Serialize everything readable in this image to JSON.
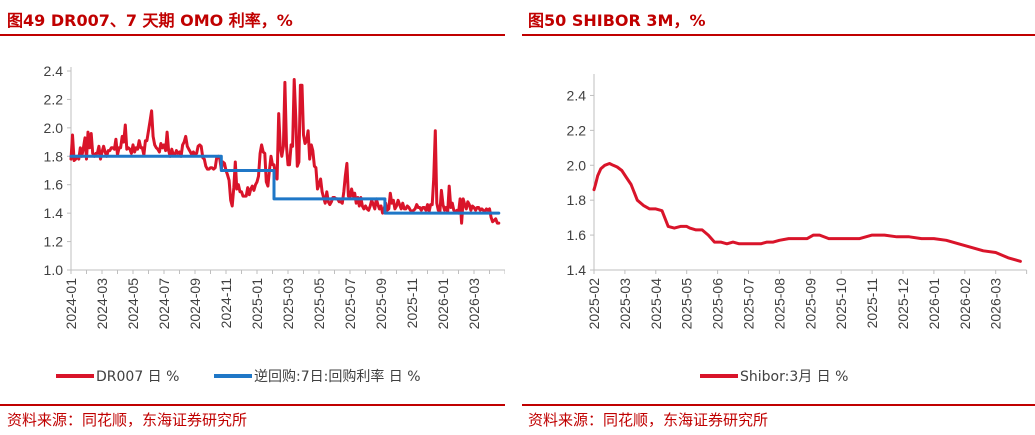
{
  "colors": {
    "accent": "#c00000",
    "series_red": "#d9142a",
    "series_blue": "#1f77c7",
    "axis": "#bfbfbf",
    "text": "#404040"
  },
  "left_panel": {
    "title": "图49  DR007、7 天期 OMO 利率，%",
    "source": "资料来源：同花顺，东海证券研究所"
  },
  "right_panel": {
    "title": "图50  SHIBOR 3M，%",
    "source": "资料来源：同花顺，东海证券研究所"
  },
  "chart_data": [
    {
      "type": "line",
      "title": "DR007、7 天期 OMO 利率，%",
      "xlabel": "",
      "ylabel": "",
      "ylim": [
        1.0,
        2.4
      ],
      "yticks": [
        "1.0",
        "1.2",
        "1.4",
        "1.6",
        "1.8",
        "2.0",
        "2.2",
        "2.4"
      ],
      "xlim": [
        "2024-01",
        "2026-04"
      ],
      "xticks": [
        "2024-01",
        "2024-03",
        "2024-05",
        "2024-07",
        "2024-09",
        "2024-11",
        "2025-01",
        "2025-03",
        "2025-05",
        "2025-07",
        "2025-09",
        "2025-11",
        "2026-01",
        "2026-03"
      ],
      "legend_position": "bottom",
      "series": [
        {
          "name": "DR007 日 %",
          "color": "#d9142a",
          "x": [
            0.0,
            0.1,
            0.2,
            0.3,
            0.4,
            0.5,
            0.6,
            0.7,
            0.8,
            0.9,
            1.0,
            1.1,
            1.2,
            1.3,
            1.4,
            1.5,
            1.6,
            1.7,
            1.8,
            1.9,
            2.0,
            2.1,
            2.2,
            2.3,
            2.4,
            2.5,
            2.6,
            2.7,
            2.8,
            2.9,
            3.0,
            3.1,
            3.2,
            3.3,
            3.4,
            3.5,
            3.6,
            3.7,
            3.8,
            3.9,
            4.0,
            4.1,
            4.2,
            4.3,
            4.4,
            4.5,
            4.6,
            4.7,
            4.8,
            4.9,
            5.0,
            5.1,
            5.2,
            5.3,
            5.4,
            5.5,
            5.6,
            5.7,
            5.8,
            5.9,
            6.0,
            6.1,
            6.2,
            6.3,
            6.4,
            6.5,
            6.6,
            6.7,
            6.8,
            6.9,
            7.0,
            7.1,
            7.2,
            7.3,
            7.4,
            7.5,
            7.6,
            7.7,
            7.8,
            7.9,
            8.0,
            8.1,
            8.2,
            8.3,
            8.4,
            8.5,
            8.6,
            8.7,
            8.8,
            8.9,
            9.0,
            9.1,
            9.2,
            9.3,
            9.4,
            9.5,
            9.6,
            9.7,
            9.8,
            9.9,
            10.0,
            10.1,
            10.2,
            10.3,
            10.4,
            10.5,
            10.6,
            10.7,
            10.8,
            10.9,
            11.0,
            11.1,
            11.2,
            11.3,
            11.4,
            11.5,
            11.6,
            11.7,
            11.8,
            11.9,
            12.0,
            12.1,
            12.2,
            12.3,
            12.4,
            12.5,
            12.6,
            12.7,
            12.8,
            12.9,
            13.0,
            13.1,
            13.2,
            13.3,
            13.4,
            13.5,
            13.6,
            13.7,
            13.8,
            13.9,
            14.0,
            14.1,
            14.2,
            14.3,
            14.4,
            14.5,
            14.6,
            14.7,
            14.8,
            14.9,
            15.0,
            15.1,
            15.2,
            15.3,
            15.4,
            15.5,
            15.6,
            15.7,
            15.8,
            15.9,
            16.0,
            16.1,
            16.2,
            16.3,
            16.4,
            16.5,
            16.6,
            16.7,
            16.8,
            16.9,
            17.0,
            17.1,
            17.2,
            17.3,
            17.4,
            17.5,
            17.6,
            17.7,
            17.8,
            17.9,
            18.0,
            18.1,
            18.2,
            18.3,
            18.4,
            18.5,
            18.6,
            18.7,
            18.8,
            18.9,
            19.0,
            19.1,
            19.2,
            19.3,
            19.4,
            19.5,
            19.6,
            19.7,
            19.8,
            19.9,
            20.0,
            20.1,
            20.2,
            20.3,
            20.4,
            20.5,
            20.6,
            20.7,
            20.8,
            20.9,
            21.0,
            21.1,
            21.2,
            21.3,
            21.4,
            21.5,
            21.6,
            21.7,
            21.8,
            21.9,
            22.0,
            22.1,
            22.2,
            22.3,
            22.4,
            22.5,
            22.6,
            22.7,
            22.8,
            22.9,
            23.0,
            23.1,
            23.2,
            23.3,
            23.4,
            23.5,
            23.6,
            23.7,
            23.8,
            23.9,
            24.0,
            24.1,
            24.2,
            24.3,
            24.4,
            24.5,
            24.6,
            24.7,
            24.8,
            24.9,
            25.0,
            25.1,
            25.2,
            25.3,
            25.4,
            25.5,
            25.6,
            25.7,
            25.8,
            25.9,
            26.0,
            26.1,
            26.2,
            26.3,
            26.4,
            26.5,
            26.6,
            26.7,
            26.8,
            26.9,
            27.0,
            27.1,
            27.2,
            27.3,
            27.4,
            27.5,
            27.6
          ],
          "values": [
            1.78,
            1.95,
            1.77,
            1.78,
            1.8,
            1.78,
            1.86,
            1.8,
            1.86,
            1.93,
            1.78,
            1.97,
            1.86,
            1.96,
            1.82,
            1.8,
            1.82,
            1.82,
            1.87,
            1.78,
            1.83,
            1.87,
            1.83,
            1.8,
            1.84,
            1.84,
            1.86,
            1.86,
            1.85,
            1.92,
            1.81,
            1.86,
            1.86,
            1.94,
            1.9,
            2.02,
            1.85,
            1.86,
            1.85,
            1.82,
            1.88,
            1.83,
            1.86,
            1.85,
            1.91,
            1.86,
            1.86,
            1.81,
            1.91,
            1.91,
            1.98,
            2.05,
            2.12,
            1.94,
            1.88,
            1.86,
            1.85,
            1.83,
            1.89,
            1.86,
            1.88,
            1.84,
            1.97,
            1.84,
            1.8,
            1.85,
            1.81,
            1.81,
            1.84,
            1.82,
            1.83,
            1.8,
            1.88,
            1.9,
            1.94,
            1.87,
            1.85,
            1.83,
            1.81,
            1.83,
            1.81,
            1.82,
            1.87,
            1.88,
            1.87,
            1.79,
            1.78,
            1.73,
            1.71,
            1.71,
            1.72,
            1.72,
            1.71,
            1.72,
            1.79,
            1.8,
            1.78,
            1.71,
            1.76,
            1.75,
            1.7,
            1.67,
            1.63,
            1.49,
            1.45,
            1.58,
            1.76,
            1.57,
            1.6,
            1.55,
            1.55,
            1.52,
            1.52,
            1.52,
            1.58,
            1.53,
            1.57,
            1.59,
            1.56,
            1.6,
            1.62,
            1.66,
            1.82,
            1.88,
            1.83,
            1.82,
            1.62,
            1.59,
            1.7,
            1.8,
            1.74,
            1.74,
            1.66,
            1.64,
            2.1,
            1.86,
            1.8,
            1.87,
            2.32,
            1.87,
            1.74,
            1.74,
            1.88,
            1.87,
            2.34,
            2.07,
            1.73,
            1.76,
            2.3,
            2.3,
            1.95,
            1.89,
            1.91,
            1.98,
            1.78,
            1.88,
            1.84,
            1.73,
            1.72,
            1.57,
            1.6,
            1.64,
            1.55,
            1.51,
            1.47,
            1.55,
            1.48,
            1.46,
            1.48,
            1.51,
            1.51,
            1.5,
            1.5,
            1.48,
            1.48,
            1.47,
            1.55,
            1.66,
            1.75,
            1.52,
            1.51,
            1.57,
            1.52,
            1.54,
            1.47,
            1.51,
            1.45,
            1.51,
            1.45,
            1.43,
            1.45,
            1.43,
            1.42,
            1.45,
            1.49,
            1.46,
            1.43,
            1.5,
            1.46,
            1.43,
            1.45,
            1.4,
            1.43,
            1.47,
            1.42,
            1.43,
            1.54,
            1.47,
            1.49,
            1.43,
            1.45,
            1.49,
            1.46,
            1.43,
            1.47,
            1.43,
            1.43,
            1.45,
            1.44,
            1.42,
            1.41,
            1.42,
            1.43,
            1.46,
            1.44,
            1.44,
            1.42,
            1.44,
            1.44,
            1.42,
            1.46,
            1.41,
            1.46,
            1.46,
            1.64,
            1.98,
            1.47,
            1.42,
            1.41,
            1.56,
            1.46,
            1.42,
            1.44,
            1.41,
            1.59,
            1.44,
            1.47,
            1.42,
            1.41,
            1.42,
            1.4,
            1.5,
            1.33,
            1.5,
            1.46,
            1.43,
            1.48,
            1.46,
            1.42,
            1.45,
            1.44,
            1.42,
            1.44,
            1.44,
            1.42,
            1.43,
            1.42,
            1.41,
            1.43,
            1.42,
            1.43,
            1.37,
            1.34,
            1.35,
            1.36,
            1.33,
            1.33
          ]
        },
        {
          "name": "逆回购:7日:回购利率 日 %",
          "color": "#1f77c7",
          "step": true,
          "x": [
            0,
            9.7,
            9.7,
            13.1,
            13.1,
            20.25,
            20.25,
            27.6
          ],
          "values": [
            1.8,
            1.8,
            1.7,
            1.7,
            1.5,
            1.5,
            1.4,
            1.4
          ]
        }
      ]
    },
    {
      "type": "line",
      "title": "SHIBOR 3M，%",
      "xlabel": "",
      "ylabel": "",
      "ylim": [
        1.4,
        2.5
      ],
      "yticks": [
        "1.4",
        "1.6",
        "1.8",
        "2.0",
        "2.2",
        "2.4"
      ],
      "xlim": [
        "2025-02",
        "2026-04"
      ],
      "xticks": [
        "2025-02",
        "2025-03",
        "2025-04",
        "2025-05",
        "2025-06",
        "2025-07",
        "2025-08",
        "2025-09",
        "2025-10",
        "2025-11",
        "2025-12",
        "2026-01",
        "2026-02",
        "2026-03"
      ],
      "legend_position": "bottom",
      "series": [
        {
          "name": "Shibor:3月 日 %",
          "color": "#d9142a",
          "x": [
            0.0,
            0.05,
            0.12,
            0.22,
            0.35,
            0.5,
            0.62,
            0.75,
            0.9,
            1.05,
            1.2,
            1.4,
            1.6,
            1.8,
            2.0,
            2.2,
            2.4,
            2.6,
            2.8,
            3.0,
            3.1,
            3.3,
            3.5,
            3.7,
            3.9,
            4.1,
            4.3,
            4.5,
            4.7,
            4.9,
            5.0,
            5.2,
            5.4,
            5.6,
            5.8,
            6.0,
            6.3,
            6.6,
            6.9,
            7.1,
            7.3,
            7.6,
            7.9,
            8.2,
            8.6,
            9.0,
            9.4,
            9.8,
            10.2,
            10.6,
            11.0,
            11.4,
            11.8,
            12.2,
            12.6,
            13.0,
            13.4,
            13.8
          ],
          "values": [
            1.86,
            1.89,
            1.94,
            1.98,
            2.0,
            2.01,
            2.0,
            1.99,
            1.97,
            1.93,
            1.89,
            1.8,
            1.77,
            1.75,
            1.75,
            1.74,
            1.65,
            1.64,
            1.65,
            1.65,
            1.64,
            1.63,
            1.63,
            1.6,
            1.56,
            1.56,
            1.55,
            1.56,
            1.55,
            1.55,
            1.55,
            1.55,
            1.55,
            1.56,
            1.56,
            1.57,
            1.58,
            1.58,
            1.58,
            1.6,
            1.6,
            1.58,
            1.58,
            1.58,
            1.58,
            1.6,
            1.6,
            1.59,
            1.59,
            1.58,
            1.58,
            1.57,
            1.55,
            1.53,
            1.51,
            1.5,
            1.47,
            1.45
          ]
        }
      ]
    }
  ]
}
